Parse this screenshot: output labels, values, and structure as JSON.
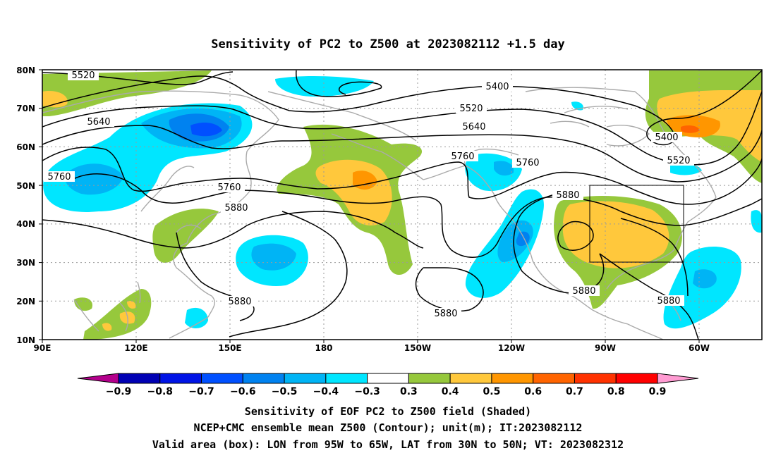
{
  "title": "Sensitivity of PC2 to Z500 at 2023082112 +1.5 day",
  "axes": {
    "lat_ticks": [
      "80N",
      "70N",
      "60N",
      "50N",
      "40N",
      "30N",
      "20N",
      "10N"
    ],
    "lon_ticks": [
      "90E",
      "120E",
      "150E",
      "180",
      "150W",
      "120W",
      "90W",
      "60W"
    ]
  },
  "contour_labels": [
    {
      "id": "c5520a",
      "text": "5520"
    },
    {
      "id": "c5400a",
      "text": "5400"
    },
    {
      "id": "c5520b",
      "text": "5520"
    },
    {
      "id": "c5640a",
      "text": "5640"
    },
    {
      "id": "c5640b",
      "text": "5640"
    },
    {
      "id": "c5760a",
      "text": "5760"
    },
    {
      "id": "c5760b",
      "text": "5760"
    },
    {
      "id": "c5760c",
      "text": "5760"
    },
    {
      "id": "c5760d",
      "text": "5760"
    },
    {
      "id": "c5880a",
      "text": "5880"
    },
    {
      "id": "c5880b",
      "text": "5880"
    },
    {
      "id": "c5880c",
      "text": "5880"
    },
    {
      "id": "c5880d",
      "text": "5880"
    },
    {
      "id": "c5880e",
      "text": "5880"
    },
    {
      "id": "c5400b",
      "text": "5400"
    },
    {
      "id": "c5520c",
      "text": "5520"
    },
    {
      "id": "c5880f",
      "text": "5880"
    }
  ],
  "colorbar": {
    "labels": [
      "-0.9",
      "-0.8",
      "-0.7",
      "-0.6",
      "-0.5",
      "-0.4",
      "-0.3",
      "0.3",
      "0.4",
      "0.5",
      "0.6",
      "0.7",
      "0.8",
      "0.9"
    ],
    "colors": [
      "#b4008c",
      "#0000b4",
      "#0014e6",
      "#0050ff",
      "#0082f0",
      "#00b4f5",
      "#00e6ff",
      "#ffffff",
      "#96c83c",
      "#ffc83c",
      "#ff9600",
      "#ff6400",
      "#ff3200",
      "#ff0000",
      "#ff9bd2"
    ]
  },
  "footer": [
    "Sensitivity of EOF PC2 to Z500 field (Shaded)",
    "NCEP+CMC ensemble mean Z500 (Contour); unit(m); IT:2023082112",
    "Valid area (box): LON from 95W to 65W, LAT from 30N to 50N; VT: 2023082312"
  ]
}
